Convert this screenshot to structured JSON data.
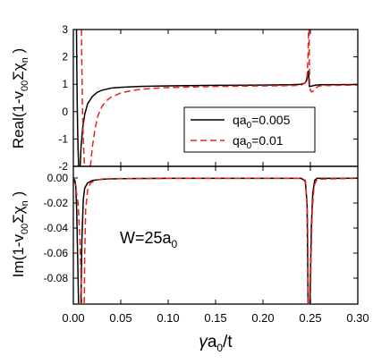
{
  "chart_data": [
    {
      "type": "line",
      "panel": "top",
      "ylabel_parts": {
        "base": "Real(1-v",
        "sub1": "00",
        "mid": "Σχ",
        "sub2": "n",
        "end": " )"
      },
      "xlim": [
        0.0,
        0.3
      ],
      "ylim": [
        -2,
        3
      ],
      "yticks": [
        -2,
        -1,
        0,
        1,
        2,
        3
      ],
      "ytick_labels": [
        "-2",
        "-1",
        "0",
        "1",
        "2",
        "3"
      ],
      "xticks": [
        0.0,
        0.05,
        0.1,
        0.15,
        0.2,
        0.25,
        0.3
      ],
      "grid": false,
      "legend_position": "lower-right",
      "legend": [
        {
          "base": "qa",
          "sub": "0",
          "rest": "=0.005",
          "style": "solid",
          "color": "#000000"
        },
        {
          "base": "qa",
          "sub": "0",
          "rest": "=0.01",
          "style": "dashed",
          "color": "#e8231c"
        }
      ],
      "series": [
        {
          "name": "qa0=0.005",
          "color": "#000000",
          "dash": "solid",
          "segments": [
            [
              [
                0.0033,
                3.0
              ],
              [
                0.0036,
                1.8
              ],
              [
                0.004,
                0.5
              ],
              [
                0.0045,
                -0.6
              ],
              [
                0.005,
                -1.4
              ],
              [
                0.0056,
                -2.0
              ]
            ],
            [
              [
                0.0072,
                -2.0
              ],
              [
                0.008,
                -1.35
              ],
              [
                0.01,
                -0.55
              ],
              [
                0.012,
                -0.1
              ],
              [
                0.015,
                0.28
              ],
              [
                0.02,
                0.55
              ],
              [
                0.025,
                0.7
              ],
              [
                0.03,
                0.78
              ],
              [
                0.04,
                0.86
              ],
              [
                0.05,
                0.89
              ],
              [
                0.07,
                0.92
              ],
              [
                0.1,
                0.94
              ],
              [
                0.15,
                0.96
              ],
              [
                0.2,
                0.97
              ],
              [
                0.23,
                0.98
              ],
              [
                0.24,
                1.0
              ],
              [
                0.2445,
                1.05
              ],
              [
                0.246,
                1.15
              ],
              [
                0.247,
                1.3
              ],
              [
                0.2478,
                1.5
              ],
              [
                0.2482,
                1.38
              ],
              [
                0.2486,
                1.05
              ],
              [
                0.249,
                0.92
              ],
              [
                0.2496,
                0.92
              ],
              [
                0.251,
                0.93
              ],
              [
                0.253,
                0.95
              ],
              [
                0.256,
                0.97
              ],
              [
                0.26,
                0.98
              ],
              [
                0.3,
                0.99
              ]
            ]
          ]
        },
        {
          "name": "qa0=0.01",
          "color": "#e8231c",
          "dash": "dashed",
          "segments": [
            [
              [
                0.0085,
                3.0
              ],
              [
                0.009,
                1.6
              ],
              [
                0.0096,
                0.2
              ],
              [
                0.0103,
                -0.8
              ],
              [
                0.011,
                -1.5
              ],
              [
                0.0118,
                -2.0
              ]
            ],
            [
              [
                0.018,
                -2.0
              ],
              [
                0.02,
                -1.3
              ],
              [
                0.023,
                -0.6
              ],
              [
                0.026,
                -0.15
              ],
              [
                0.03,
                0.18
              ],
              [
                0.035,
                0.4
              ],
              [
                0.04,
                0.53
              ],
              [
                0.05,
                0.68
              ],
              [
                0.06,
                0.76
              ],
              [
                0.07,
                0.81
              ],
              [
                0.085,
                0.85
              ],
              [
                0.1,
                0.88
              ],
              [
                0.125,
                0.9
              ],
              [
                0.15,
                0.92
              ],
              [
                0.2,
                0.94
              ],
              [
                0.23,
                0.95
              ],
              [
                0.24,
                0.96
              ],
              [
                0.2445,
                1.05
              ],
              [
                0.2465,
                1.3
              ],
              [
                0.2475,
                2.0
              ],
              [
                0.248,
                3.0
              ]
            ],
            [
              [
                0.2486,
                3.0
              ],
              [
                0.2492,
                1.0
              ],
              [
                0.25,
                0.78
              ],
              [
                0.2508,
                0.74
              ],
              [
                0.2518,
                0.72
              ],
              [
                0.253,
                0.76
              ],
              [
                0.255,
                0.85
              ],
              [
                0.258,
                0.92
              ],
              [
                0.262,
                0.95
              ],
              [
                0.3,
                0.97
              ]
            ]
          ]
        }
      ]
    },
    {
      "type": "line",
      "panel": "bottom",
      "ylabel_parts": {
        "base": "Im(1-v",
        "sub1": "00",
        "mid": "Σχ",
        "sub2": "n",
        "end": " )"
      },
      "xlabel_parts": {
        "g": "γ",
        "base": "a",
        "sub": "0",
        "rest": "/t"
      },
      "annotation_parts": {
        "base": "W=25a",
        "sub": "0"
      },
      "xlim": [
        0.0,
        0.3
      ],
      "ylim": [
        -0.1,
        0.005
      ],
      "yticks": [
        0.0,
        -0.02,
        -0.04,
        -0.06,
        -0.08
      ],
      "ytick_labels": [
        "0.00",
        "-0.02",
        "-0.04",
        "-0.06",
        "-0.08"
      ],
      "xticks": [
        0.0,
        0.05,
        0.1,
        0.15,
        0.2,
        0.25,
        0.3
      ],
      "xtick_labels": [
        "0.00",
        "0.05",
        "0.10",
        "0.15",
        "0.20",
        "0.25",
        "0.30"
      ],
      "grid": false,
      "series": [
        {
          "name": "qa0=0.005",
          "color": "#000000",
          "dash": "solid",
          "segments": [
            [
              [
                0.0,
                -0.001
              ],
              [
                0.0015,
                -0.0015
              ],
              [
                0.0025,
                -0.006
              ],
              [
                0.0035,
                -0.025
              ],
              [
                0.0045,
                -0.062
              ],
              [
                0.0055,
                -0.1
              ]
            ],
            [
              [
                0.008,
                -0.1
              ],
              [
                0.009,
                -0.05
              ],
              [
                0.0105,
                -0.017
              ],
              [
                0.012,
                -0.008
              ],
              [
                0.015,
                -0.004
              ],
              [
                0.02,
                -0.002
              ],
              [
                0.03,
                -0.001
              ],
              [
                0.05,
                -0.0005
              ],
              [
                0.1,
                -0.0003
              ],
              [
                0.24,
                -0.0003
              ],
              [
                0.2445,
                -0.002
              ],
              [
                0.2465,
                -0.02
              ],
              [
                0.2473,
                -0.08
              ],
              [
                0.2475,
                -0.1
              ]
            ],
            [
              [
                0.2495,
                -0.1
              ],
              [
                0.25,
                -0.08
              ],
              [
                0.251,
                -0.04
              ],
              [
                0.2525,
                -0.012
              ],
              [
                0.2545,
                -0.002
              ],
              [
                0.257,
                -0.0003
              ],
              [
                0.3,
                -0.0002
              ]
            ]
          ]
        },
        {
          "name": "qa0=0.01",
          "color": "#e8231c",
          "dash": "dashed",
          "segments": [
            [
              [
                0.0,
                -0.002
              ],
              [
                0.002,
                -0.005
              ],
              [
                0.005,
                -0.02
              ],
              [
                0.007,
                -0.05
              ],
              [
                0.0088,
                -0.1
              ]
            ],
            [
              [
                0.0115,
                -0.1
              ],
              [
                0.012,
                -0.06
              ],
              [
                0.013,
                -0.025
              ],
              [
                0.015,
                -0.01
              ],
              [
                0.018,
                -0.004
              ],
              [
                0.025,
                -0.0015
              ],
              [
                0.04,
                -0.0005
              ],
              [
                0.1,
                -0.0003
              ],
              [
                0.24,
                -0.0003
              ],
              [
                0.245,
                -0.003
              ],
              [
                0.247,
                -0.03
              ],
              [
                0.2478,
                -0.1
              ]
            ],
            [
              [
                0.25,
                -0.1
              ],
              [
                0.2508,
                -0.06
              ],
              [
                0.252,
                -0.025
              ],
              [
                0.254,
                -0.006
              ],
              [
                0.257,
                -0.001
              ],
              [
                0.3,
                -0.0002
              ]
            ]
          ]
        }
      ]
    }
  ]
}
